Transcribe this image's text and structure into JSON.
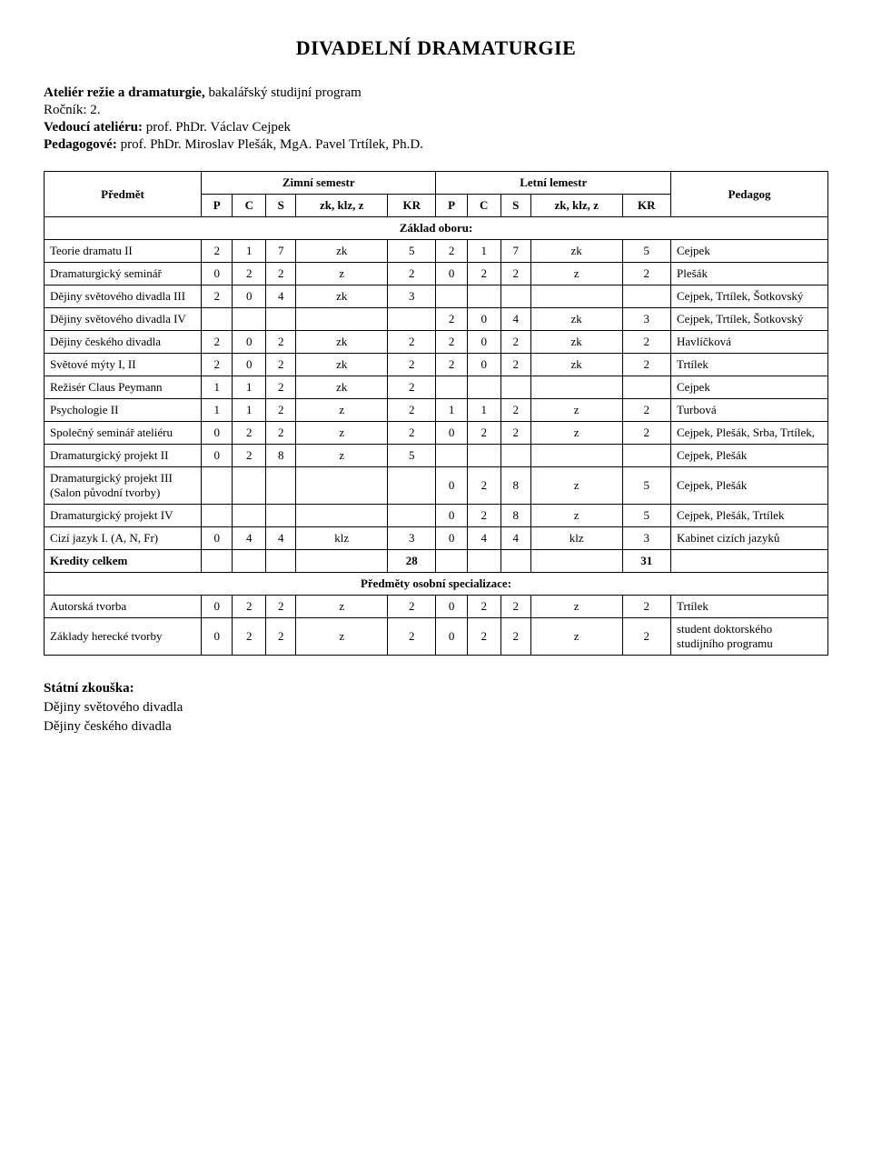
{
  "title": "DIVADELNÍ  DRAMATURGIE",
  "meta": {
    "atelier_label": "Ateliér režie a dramaturgie,",
    "atelier_rest": " bakalářský studijní program",
    "rocnik_label": "Ročník: 2.",
    "vedouci_label": "Vedoucí ateliéru: ",
    "vedouci_value": "prof. PhDr. Václav Cejpek",
    "pedagogove_label": "Pedagogové: ",
    "pedagogove_value": "prof. PhDr. Miroslav Plešák, MgA. Pavel Trtílek, Ph.D."
  },
  "header": {
    "predmet": "Předmět",
    "zimni": "Zimní semestr",
    "letni": "Letní lemestr",
    "pedagog": "Pedagog",
    "P": "P",
    "C": "C",
    "S": "S",
    "zk": "zk, klz, z",
    "KR": "KR"
  },
  "section1": "Základ oboru:",
  "section2": "Předměty osobní specializace:",
  "rows": [
    {
      "label": "Teorie dramatu II",
      "z": [
        "2",
        "1",
        "7",
        "zk",
        "5"
      ],
      "l": [
        "2",
        "1",
        "7",
        "zk",
        "5"
      ],
      "ped": "Cejpek"
    },
    {
      "label": "Dramaturgický seminář",
      "z": [
        "0",
        "2",
        "2",
        "z",
        "2"
      ],
      "l": [
        "0",
        "2",
        "2",
        "z",
        "2"
      ],
      "ped": "Plešák"
    },
    {
      "label": "Dějiny světového divadla III",
      "z": [
        "2",
        "0",
        "4",
        "zk",
        "3"
      ],
      "l": [
        "",
        "",
        "",
        "",
        ""
      ],
      "ped": "Cejpek, Trtílek, Šotkovský"
    },
    {
      "label": "Dějiny světového divadla IV",
      "z": [
        "",
        "",
        "",
        "",
        ""
      ],
      "l": [
        "2",
        "0",
        "4",
        "zk",
        "3"
      ],
      "ped": "Cejpek, Trtílek, Šotkovský"
    },
    {
      "label": "Dějiny českého divadla",
      "z": [
        "2",
        "0",
        "2",
        "zk",
        "2"
      ],
      "l": [
        "2",
        "0",
        "2",
        "zk",
        "2"
      ],
      "ped": "Havlíčková"
    },
    {
      "label": "Světové mýty I, II",
      "z": [
        "2",
        "0",
        "2",
        "zk",
        "2"
      ],
      "l": [
        "2",
        "0",
        "2",
        "zk",
        "2"
      ],
      "ped": "Trtílek"
    },
    {
      "label": "Režisér Claus Peymann",
      "z": [
        "1",
        "1",
        "2",
        "zk",
        "2"
      ],
      "l": [
        "",
        "",
        "",
        "",
        ""
      ],
      "ped": "Cejpek"
    },
    {
      "label": "Psychologie II",
      "z": [
        "1",
        "1",
        "2",
        "z",
        "2"
      ],
      "l": [
        "1",
        "1",
        "2",
        "z",
        "2"
      ],
      "ped": "Turbová"
    },
    {
      "label": "Společný seminář ateliéru",
      "z": [
        "0",
        "2",
        "2",
        "z",
        "2"
      ],
      "l": [
        "0",
        "2",
        "2",
        "z",
        "2"
      ],
      "ped": "Cejpek, Plešák, Srba, Trtílek,"
    },
    {
      "label": "Dramaturgický projekt II",
      "z": [
        "0",
        "2",
        "8",
        "z",
        "5"
      ],
      "l": [
        "",
        "",
        "",
        "",
        ""
      ],
      "ped": "Cejpek, Plešák"
    },
    {
      "label": "Dramaturgický projekt III (Salon původní tvorby)",
      "z": [
        "",
        "",
        "",
        "",
        ""
      ],
      "l": [
        "0",
        "2",
        "8",
        "z",
        "5"
      ],
      "ped": "Cejpek, Plešák"
    },
    {
      "label": "Dramaturgický projekt IV",
      "z": [
        "",
        "",
        "",
        "",
        ""
      ],
      "l": [
        "0",
        "2",
        "8",
        "z",
        "5"
      ],
      "ped": "Cejpek, Plešák, Trtílek"
    },
    {
      "label": "Cizí jazyk I. (A, N, Fr)",
      "z": [
        "0",
        "4",
        "4",
        "klz",
        "3"
      ],
      "l": [
        "0",
        "4",
        "4",
        "klz",
        "3"
      ],
      "ped": "Kabinet cizích jazyků"
    }
  ],
  "credits": {
    "label": "Kredity celkem",
    "z": "28",
    "l": "31"
  },
  "rows2": [
    {
      "label": "Autorská tvorba",
      "z": [
        "0",
        "2",
        "2",
        "z",
        "2"
      ],
      "l": [
        "0",
        "2",
        "2",
        "z",
        "2"
      ],
      "ped": "Trtílek"
    },
    {
      "label": "Základy herecké tvorby",
      "z": [
        "0",
        "2",
        "2",
        "z",
        "2"
      ],
      "l": [
        "0",
        "2",
        "2",
        "z",
        "2"
      ],
      "ped": "student doktorského studijního programu"
    }
  ],
  "footer": {
    "statni": "Státní zkouška:",
    "line1": "Dějiny světového divadla",
    "line2": "Dějiny českého divadla"
  },
  "style": {
    "col_widths": {
      "P": 40,
      "C": 40,
      "S": 40,
      "zk": 50,
      "KR": 40
    }
  }
}
